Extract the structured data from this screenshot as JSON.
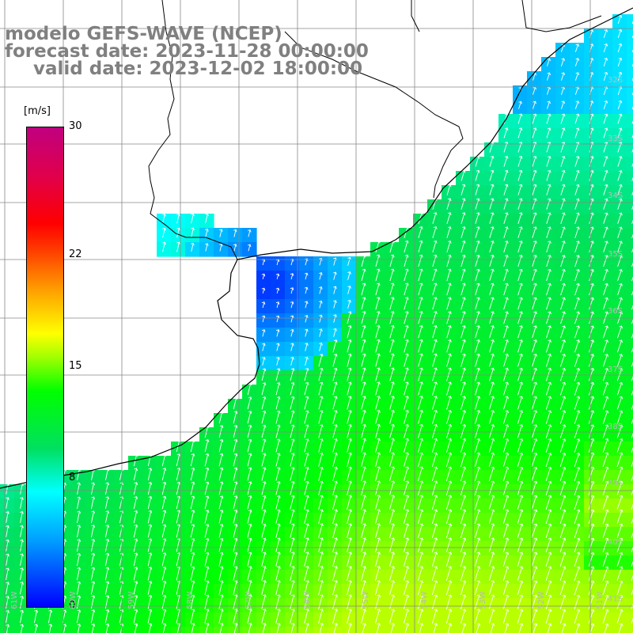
{
  "title": {
    "model": "modelo GEFS-WAVE (NCEP)",
    "forecast": "forecast date: 2023-11-28 00:00:00",
    "valid": "valid date: 2023-12-02 18:00:00"
  },
  "colorbar": {
    "unit": "[m/s]",
    "ticks": [
      {
        "label": "30",
        "value": 30
      },
      {
        "label": "22",
        "value": 22
      },
      {
        "label": "15",
        "value": 15
      },
      {
        "label": "8",
        "value": 8
      },
      {
        "label": "0",
        "value": 0
      }
    ],
    "min": 0,
    "max": 30,
    "colors": [
      "#0000ff",
      "#00a0ff",
      "#00ffff",
      "#00e060",
      "#00ff00",
      "#a0ff00",
      "#ffff00",
      "#ffa000",
      "#ff4000",
      "#ff0000",
      "#c0007f"
    ]
  },
  "grid": {
    "lat_labels": [
      "32S",
      "33S",
      "34S",
      "35S",
      "36S",
      "37S",
      "38S",
      "39S",
      "40S",
      "41S"
    ],
    "lon_labels": [
      "61W",
      "60W",
      "59W",
      "58W",
      "57W",
      "56W",
      "55W",
      "54W",
      "53W",
      "52W",
      "51W"
    ]
  },
  "colors": {
    "land": "#ffffff",
    "coast": "#000000",
    "grid": "#888888",
    "arrow": "#ffffff",
    "label": "#808080"
  }
}
